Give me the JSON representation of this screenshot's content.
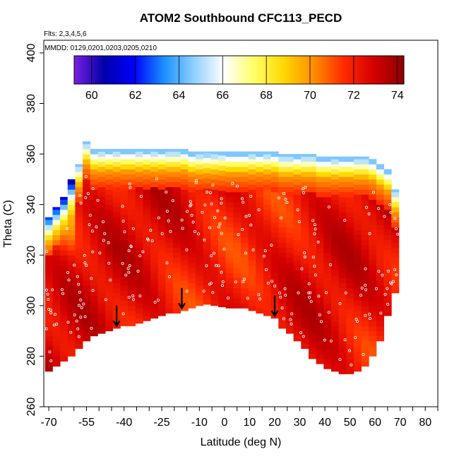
{
  "chart_data": {
    "type": "heatmap",
    "title": "ATOM2 Southbound CFC113_PECD",
    "xlabel": "Latitude (deg N)",
    "ylabel": "Theta (C)",
    "xlim": [
      -72,
      85
    ],
    "ylim": [
      260,
      405
    ],
    "x_ticks": [
      -70,
      -55,
      -40,
      -25,
      -10,
      0,
      10,
      20,
      30,
      40,
      50,
      60,
      70,
      80
    ],
    "x_ticks_major_labels": [
      "-70",
      "-55",
      "-40",
      "-25",
      "-10",
      "0",
      "10",
      "20",
      "30",
      "40",
      "50",
      "60",
      "70",
      "80"
    ],
    "x_minor_ticks": [
      -65,
      -60,
      -50,
      -45,
      -35,
      -30,
      -20,
      -15,
      -5,
      5,
      15,
      25,
      35,
      45,
      55,
      65,
      75,
      85
    ],
    "y_ticks": [
      260,
      280,
      300,
      320,
      340,
      360,
      380,
      400
    ],
    "y_tick_labels": [
      "260",
      "280",
      "300",
      "320",
      "340",
      "360",
      "380",
      "400"
    ],
    "flights_note": "Flts: 2,3,4,5,6",
    "dates_note": "MMDD: 0129,0201,0203,0205,0210",
    "colorbar": {
      "range": [
        59.2,
        74.3
      ],
      "ticks": [
        60,
        62,
        64,
        66,
        68,
        70,
        72,
        74
      ],
      "tick_labels": [
        "60",
        "62",
        "64",
        "66",
        "68",
        "70",
        "72",
        "74"
      ],
      "colors": [
        "#7b1fe0",
        "#0000aa",
        "#0000ff",
        "#1a90ff",
        "#8fd0ff",
        "#ffffff",
        "#ffff66",
        "#ffd700",
        "#ff8c00",
        "#ff2a00",
        "#d40000",
        "#8b0000"
      ]
    },
    "field": {
      "columns_lat": [
        -70,
        -67,
        -64,
        -61,
        -58,
        -55,
        -52,
        -49,
        -46,
        -43,
        -40,
        -37,
        -34,
        -31,
        -28,
        -25,
        -22,
        -19,
        -16,
        -13,
        -10,
        -7,
        -4,
        -1,
        2,
        5,
        8,
        11,
        14,
        17,
        20,
        23,
        26,
        29,
        32,
        35,
        38,
        41,
        44,
        47,
        50,
        53,
        56,
        59,
        62,
        65,
        68
      ],
      "bottom_theta": [
        274,
        276,
        278,
        280,
        283,
        286,
        288,
        289,
        290,
        291,
        292,
        292,
        293,
        294,
        295,
        296,
        297,
        297,
        298,
        299,
        300,
        300.5,
        300,
        299.5,
        299,
        299,
        299,
        298,
        297,
        296,
        295,
        291,
        289,
        286,
        283,
        279,
        277,
        275,
        274,
        273,
        273,
        274,
        276,
        280,
        286,
        296,
        305
      ],
      "top_theta": [
        335,
        339,
        343,
        350,
        356,
        365,
        362,
        362,
        362,
        362,
        362,
        362,
        362,
        362,
        362,
        362,
        362,
        362,
        362,
        361,
        361,
        361,
        361,
        361,
        361,
        361,
        361,
        361,
        361,
        361,
        361,
        360,
        360,
        360,
        360,
        360,
        359,
        359,
        359,
        359,
        359,
        359,
        359,
        358,
        356,
        354,
        346
      ],
      "interior_value": 72.3,
      "upper_gradient": [
        {
          "theta_above_top": 0,
          "value": 64.5
        },
        {
          "theta_above_top": -4,
          "value": 67.5
        },
        {
          "theta_above_top": -8,
          "value": 70.0
        },
        {
          "theta_above_top": -14,
          "value": 71.5
        }
      ]
    },
    "arrows_lat": [
      -43,
      -17,
      20
    ],
    "annotation_markers": "small white open circles marking sample locations"
  }
}
